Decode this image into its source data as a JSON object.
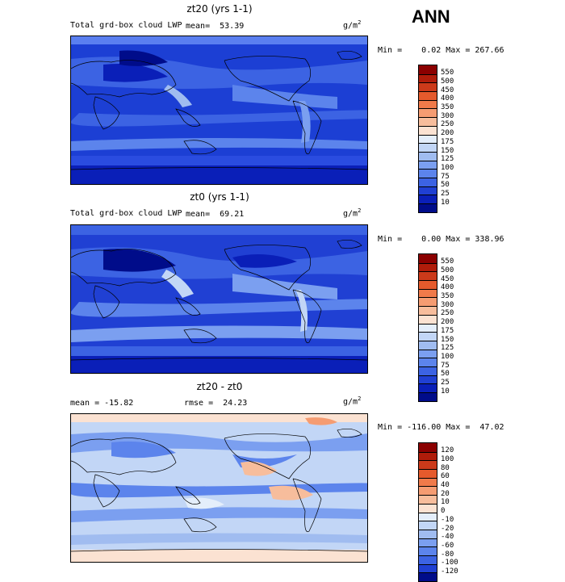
{
  "season": "ANN",
  "units": "g/m",
  "units_sup": "2",
  "panels": [
    {
      "title": "zt20 (yrs 1-1)",
      "subtitle": "Total grd-box cloud LWP",
      "stat": "mean=  53.39",
      "minmax": "Min =    0.02 Max = 267.66",
      "levels": [
        "550",
        "500",
        "450",
        "400",
        "350",
        "300",
        "250",
        "200",
        "175",
        "150",
        "125",
        "100",
        "75",
        "50",
        "25",
        "10"
      ],
      "colors": [
        "#8b0000",
        "#b01c0a",
        "#cc3a1a",
        "#e55a2c",
        "#f07a4a",
        "#f59c72",
        "#f7bd9c",
        "#fbe2d2",
        "#e4eefb",
        "#c2d6f6",
        "#a0bcf0",
        "#7b9ff0",
        "#5c84ec",
        "#3c63e3",
        "#2040d3",
        "#0a1fb8",
        "#000c8a"
      ]
    },
    {
      "title": "zt0 (yrs 1-1)",
      "subtitle": "Total grd-box cloud LWP",
      "stat": "mean=  69.21",
      "minmax": "Min =    0.00 Max = 338.96",
      "levels": [
        "550",
        "500",
        "450",
        "400",
        "350",
        "300",
        "250",
        "200",
        "175",
        "150",
        "125",
        "100",
        "75",
        "50",
        "25",
        "10"
      ],
      "colors": [
        "#8b0000",
        "#b01c0a",
        "#cc3a1a",
        "#e55a2c",
        "#f07a4a",
        "#f59c72",
        "#f7bd9c",
        "#fbe2d2",
        "#e4eefb",
        "#c2d6f6",
        "#a0bcf0",
        "#7b9ff0",
        "#5c84ec",
        "#3c63e3",
        "#2040d3",
        "#0a1fb8",
        "#000c8a"
      ]
    },
    {
      "title": "zt20 - zt0",
      "subtitle": "mean = -15.82",
      "stat": "rmse =  24.23",
      "minmax": "Min = -116.00 Max =  47.02",
      "levels": [
        "120",
        "100",
        "80",
        "60",
        "40",
        "20",
        "10",
        "0",
        "-10",
        "-20",
        "-40",
        "-60",
        "-80",
        "-100",
        "-120"
      ],
      "colors": [
        "#8b0000",
        "#b01c0a",
        "#cc3a1a",
        "#e55a2c",
        "#f07a4a",
        "#f59c72",
        "#f7bd9c",
        "#fbe2d2",
        "#e4eefb",
        "#c2d6f6",
        "#a0bcf0",
        "#7b9ff0",
        "#5c84ec",
        "#3c63e3",
        "#2040d3",
        "#000c8a"
      ]
    }
  ],
  "chart_data": [
    {
      "type": "heatmap",
      "title": "zt20 (yrs 1-1)",
      "variable": "Total grd-box cloud LWP",
      "units": "g/m2",
      "mean": 53.39,
      "min": 0.02,
      "max": 267.66,
      "contour_levels": [
        10,
        25,
        50,
        75,
        100,
        125,
        150,
        175,
        200,
        250,
        300,
        350,
        400,
        450,
        500,
        550
      ],
      "colorscale": "blue-to-red"
    },
    {
      "type": "heatmap",
      "title": "zt0 (yrs 1-1)",
      "variable": "Total grd-box cloud LWP",
      "units": "g/m2",
      "mean": 69.21,
      "min": 0.0,
      "max": 338.96,
      "contour_levels": [
        10,
        25,
        50,
        75,
        100,
        125,
        150,
        175,
        200,
        250,
        300,
        350,
        400,
        450,
        500,
        550
      ],
      "colorscale": "blue-to-red"
    },
    {
      "type": "heatmap",
      "title": "zt20 - zt0",
      "units": "g/m2",
      "mean": -15.82,
      "rmse": 24.23,
      "min": -116.0,
      "max": 47.02,
      "contour_levels": [
        -120,
        -100,
        -80,
        -60,
        -40,
        -20,
        -10,
        0,
        10,
        20,
        40,
        60,
        80,
        100,
        120
      ],
      "colorscale": "diverging blue-white-red"
    }
  ]
}
